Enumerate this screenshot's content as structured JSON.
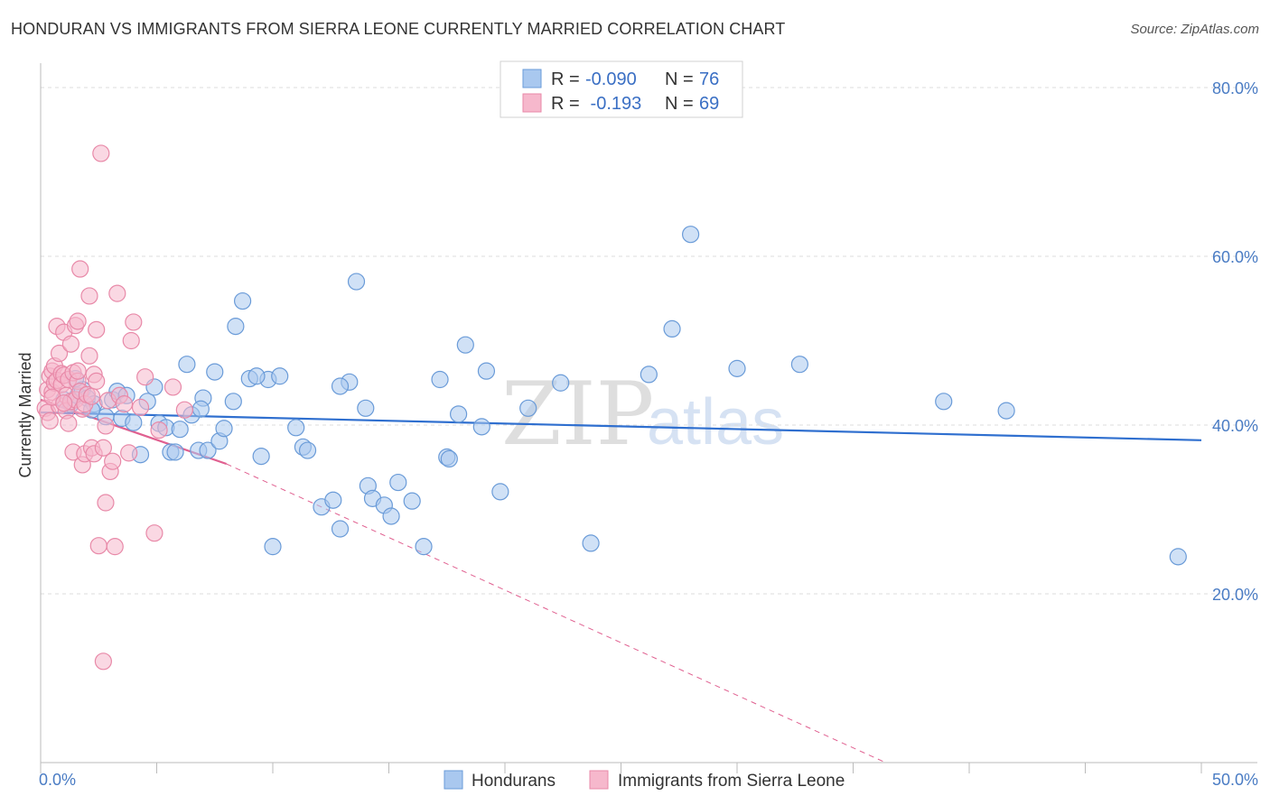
{
  "title": "HONDURAN VS IMMIGRANTS FROM SIERRA LEONE CURRENTLY MARRIED CORRELATION CHART",
  "source": "Source: ZipAtlas.com",
  "watermark": {
    "zip": "ZIP",
    "atlas": "atlas"
  },
  "legend": {
    "rows": [
      {
        "r_label": "R = ",
        "r_value": "-0.090",
        "n_label": "N = ",
        "n_value": "76"
      },
      {
        "r_label": "R = ",
        "r_value": " -0.193",
        "n_label": "N = ",
        "n_value": "69"
      }
    ]
  },
  "colors": {
    "blue_fill": "#a9c8ef",
    "blue_stroke": "#6a9bd8",
    "blue_line": "#2f6fcf",
    "pink_fill": "#f6b8cc",
    "pink_stroke": "#e889a8",
    "pink_line": "#e06090",
    "grid": "#dddddd",
    "tick_label": "#4a7cc4"
  },
  "chart_data": {
    "type": "scatter",
    "title": "HONDURAN VS IMMIGRANTS FROM SIERRA LEONE CURRENTLY MARRIED CORRELATION CHART",
    "xlabel": "",
    "ylabel": "Currently Married",
    "xlim": [
      0,
      50
    ],
    "ylim": [
      0,
      80
    ],
    "x_tick_labels": [
      "0.0%",
      "50.0%"
    ],
    "y_tick_labels": [
      "20.0%",
      "40.0%",
      "60.0%",
      "80.0%"
    ],
    "y_ticks": [
      20,
      40,
      60,
      80
    ],
    "grid": true,
    "legend_position": "bottom",
    "series": [
      {
        "name": "Hondurans",
        "color": "#a9c8ef",
        "trend": {
          "x": [
            0,
            50
          ],
          "y": [
            41.5,
            38.2
          ],
          "style": "solid"
        },
        "points": [
          [
            1.0,
            43.0
          ],
          [
            1.3,
            42.5
          ],
          [
            1.6,
            43.5
          ],
          [
            1.8,
            44.2
          ],
          [
            2.0,
            43.2
          ],
          [
            2.3,
            42.5
          ],
          [
            2.8,
            41.0
          ],
          [
            3.1,
            43.0
          ],
          [
            3.3,
            44.0
          ],
          [
            3.5,
            40.8
          ],
          [
            3.7,
            43.5
          ],
          [
            4.0,
            40.3
          ],
          [
            4.3,
            36.5
          ],
          [
            4.6,
            42.8
          ],
          [
            4.9,
            44.5
          ],
          [
            5.1,
            40.2
          ],
          [
            5.4,
            39.7
          ],
          [
            5.6,
            36.8
          ],
          [
            5.8,
            36.8
          ],
          [
            6.0,
            39.5
          ],
          [
            6.3,
            47.2
          ],
          [
            6.5,
            41.2
          ],
          [
            6.8,
            37.0
          ],
          [
            7.0,
            43.2
          ],
          [
            7.2,
            37.0
          ],
          [
            7.5,
            46.3
          ],
          [
            7.7,
            38.1
          ],
          [
            7.9,
            39.6
          ],
          [
            8.3,
            42.8
          ],
          [
            8.4,
            51.7
          ],
          [
            8.7,
            54.7
          ],
          [
            9.0,
            45.5
          ],
          [
            9.5,
            36.3
          ],
          [
            9.8,
            45.4
          ],
          [
            10.0,
            25.6
          ],
          [
            10.3,
            45.8
          ],
          [
            11.0,
            39.7
          ],
          [
            11.3,
            37.4
          ],
          [
            11.5,
            37.0
          ],
          [
            12.1,
            30.3
          ],
          [
            12.6,
            31.1
          ],
          [
            12.9,
            27.7
          ],
          [
            13.3,
            45.1
          ],
          [
            13.6,
            57.0
          ],
          [
            14.0,
            42.0
          ],
          [
            14.1,
            32.8
          ],
          [
            14.3,
            31.3
          ],
          [
            14.8,
            30.5
          ],
          [
            15.1,
            29.2
          ],
          [
            15.4,
            33.2
          ],
          [
            16.0,
            31.0
          ],
          [
            16.5,
            25.6
          ],
          [
            17.2,
            45.4
          ],
          [
            17.5,
            36.2
          ],
          [
            17.6,
            36.0
          ],
          [
            18.0,
            41.3
          ],
          [
            18.3,
            49.5
          ],
          [
            19.0,
            39.8
          ],
          [
            19.2,
            46.4
          ],
          [
            19.8,
            32.1
          ],
          [
            21.0,
            42.0
          ],
          [
            22.4,
            45.0
          ],
          [
            23.7,
            26.0
          ],
          [
            26.2,
            46.0
          ],
          [
            27.2,
            51.4
          ],
          [
            28.0,
            62.6
          ],
          [
            30.0,
            46.7
          ],
          [
            32.7,
            47.2
          ],
          [
            38.9,
            42.8
          ],
          [
            41.6,
            41.7
          ],
          [
            49.0,
            24.4
          ],
          [
            1.5,
            45.5
          ],
          [
            2.2,
            41.8
          ],
          [
            6.9,
            41.9
          ],
          [
            9.3,
            45.8
          ],
          [
            12.9,
            44.6
          ]
        ]
      },
      {
        "name": "Immigrants from Sierra Leone",
        "color": "#f6b8cc",
        "trend": {
          "x": [
            0,
            8.0
          ],
          "y": [
            43.0,
            35.4
          ],
          "style": "solid",
          "extended_x": [
            8.0,
            36.4
          ],
          "extended_y": [
            35.4,
            0
          ],
          "extended_style": "dashed"
        },
        "points": [
          [
            0.2,
            42.0
          ],
          [
            0.3,
            44.2
          ],
          [
            0.3,
            41.5
          ],
          [
            0.4,
            40.5
          ],
          [
            0.4,
            45.8
          ],
          [
            0.5,
            46.4
          ],
          [
            0.5,
            43.9
          ],
          [
            0.6,
            47.0
          ],
          [
            0.6,
            45.0
          ],
          [
            0.7,
            51.7
          ],
          [
            0.7,
            45.3
          ],
          [
            0.8,
            48.5
          ],
          [
            0.8,
            42.3
          ],
          [
            0.9,
            46.1
          ],
          [
            0.9,
            44.8
          ],
          [
            1.0,
            51.0
          ],
          [
            1.0,
            45.9
          ],
          [
            1.1,
            43.5
          ],
          [
            1.1,
            41.7
          ],
          [
            1.2,
            40.2
          ],
          [
            1.2,
            45.4
          ],
          [
            1.3,
            49.6
          ],
          [
            1.3,
            42.8
          ],
          [
            1.4,
            46.2
          ],
          [
            1.4,
            36.8
          ],
          [
            1.5,
            51.8
          ],
          [
            1.5,
            43.0
          ],
          [
            1.6,
            52.3
          ],
          [
            1.6,
            45.2
          ],
          [
            1.7,
            58.5
          ],
          [
            1.7,
            44.0
          ],
          [
            1.8,
            35.3
          ],
          [
            1.8,
            41.9
          ],
          [
            1.9,
            42.5
          ],
          [
            1.9,
            36.6
          ],
          [
            2.0,
            43.6
          ],
          [
            2.1,
            48.2
          ],
          [
            2.1,
            55.3
          ],
          [
            2.2,
            37.3
          ],
          [
            2.2,
            43.4
          ],
          [
            2.3,
            46.0
          ],
          [
            2.3,
            36.6
          ],
          [
            2.4,
            51.3
          ],
          [
            2.4,
            45.2
          ],
          [
            2.5,
            25.7
          ],
          [
            2.6,
            72.2
          ],
          [
            2.7,
            37.3
          ],
          [
            2.8,
            30.8
          ],
          [
            2.8,
            39.9
          ],
          [
            2.9,
            42.9
          ],
          [
            3.0,
            34.5
          ],
          [
            3.1,
            35.7
          ],
          [
            3.2,
            25.6
          ],
          [
            3.3,
            55.6
          ],
          [
            3.4,
            43.5
          ],
          [
            3.6,
            42.5
          ],
          [
            3.8,
            36.7
          ],
          [
            3.9,
            50.0
          ],
          [
            4.0,
            52.2
          ],
          [
            4.3,
            42.1
          ],
          [
            4.5,
            45.7
          ],
          [
            4.9,
            27.2
          ],
          [
            5.1,
            39.4
          ],
          [
            5.7,
            44.5
          ],
          [
            6.2,
            41.8
          ],
          [
            2.7,
            12.0
          ],
          [
            0.5,
            43.3
          ],
          [
            1.0,
            42.6
          ],
          [
            1.6,
            46.4
          ]
        ]
      }
    ]
  }
}
